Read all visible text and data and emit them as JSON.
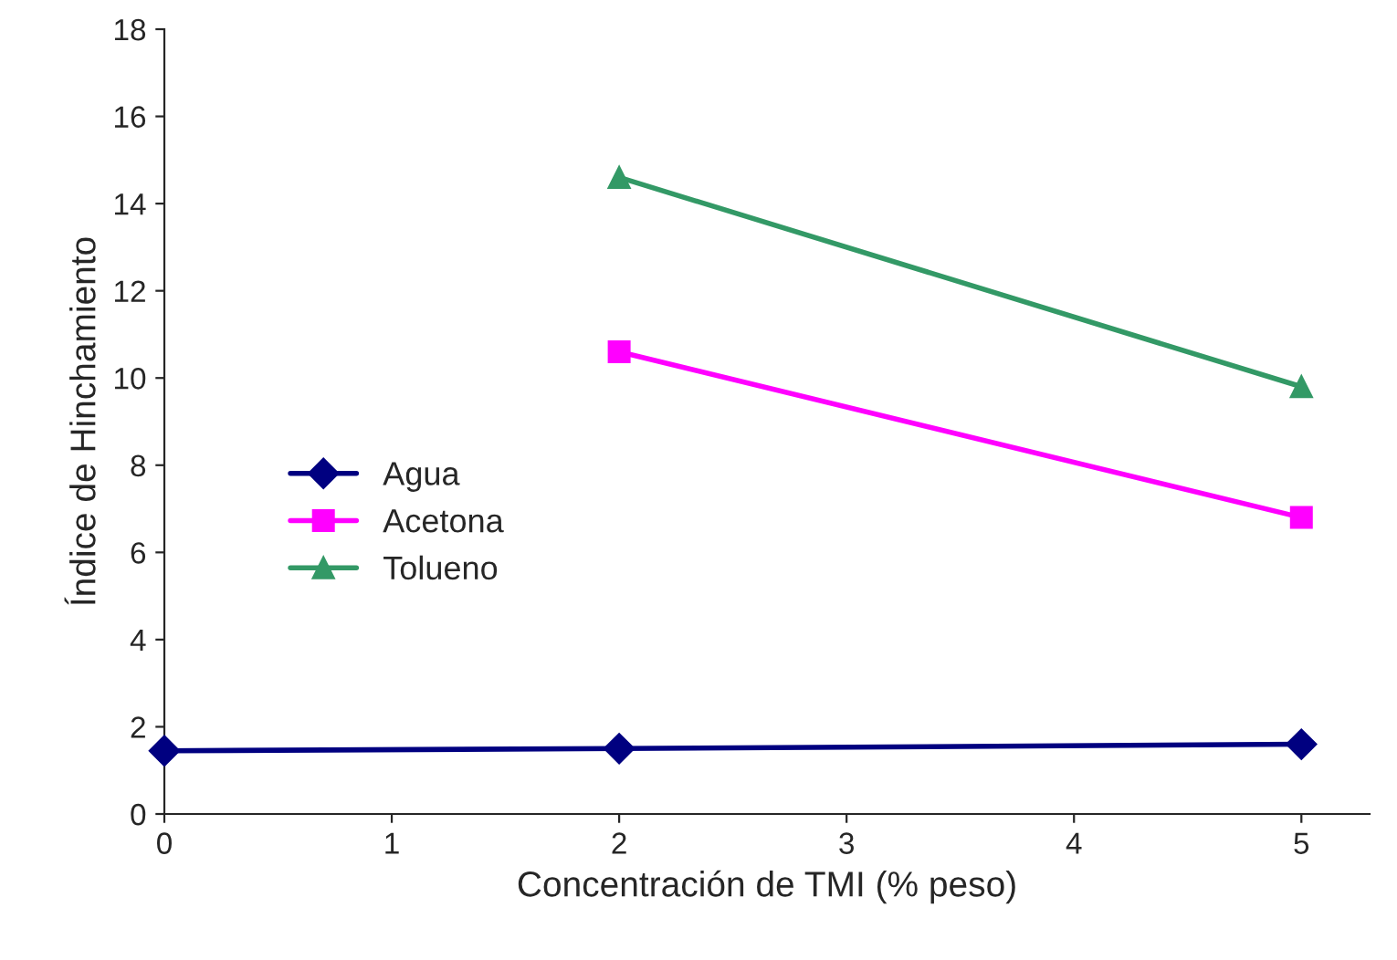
{
  "chart_data": {
    "type": "line",
    "xlabel": "Concentración de TMI (% peso)",
    "ylabel": "Índice de Hinchamiento",
    "xlim": [
      0,
      5.3
    ],
    "xticks": [
      0,
      1,
      2,
      3,
      4,
      5
    ],
    "ylim": [
      0,
      18
    ],
    "yticks": [
      0,
      2,
      4,
      6,
      8,
      10,
      12,
      14,
      16,
      18
    ],
    "grid": false,
    "legend": "left",
    "line_style": "solid",
    "series": [
      {
        "name": "Agua",
        "color": "#000080",
        "marker": "diamond",
        "x": [
          0,
          2,
          5
        ],
        "values": [
          1.45,
          1.5,
          1.6
        ]
      },
      {
        "name": "Acetona",
        "color": "#ff00ff",
        "marker": "square",
        "x": [
          2,
          5
        ],
        "values": [
          10.6,
          6.8
        ]
      },
      {
        "name": "Tolueno",
        "color": "#339966",
        "marker": "triangle",
        "x": [
          2,
          5
        ],
        "values": [
          14.6,
          9.8
        ]
      }
    ]
  }
}
